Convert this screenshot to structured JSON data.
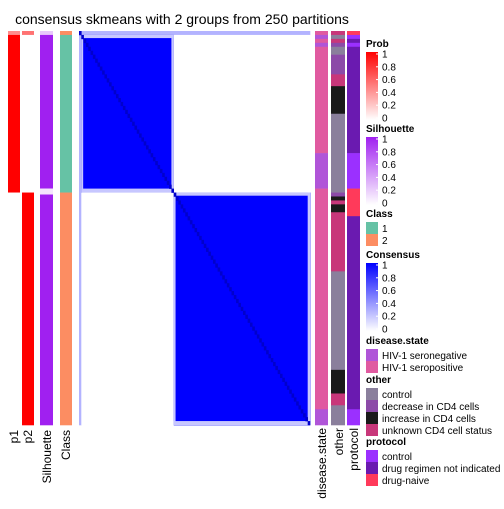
{
  "chart_data": {
    "type": "heatmap",
    "title": "consensus skmeans with 2 groups from 250 partitions",
    "n_samples": 100,
    "row_order_groups": [
      {
        "class": 2,
        "count": 1
      },
      {
        "class": 1,
        "count": 40
      },
      {
        "class": 2,
        "count": 59
      }
    ],
    "matrix_blocks": [
      {
        "rows": [
          0,
          0
        ],
        "cols": [
          0,
          0
        ],
        "value": 0.85
      },
      {
        "rows": [
          0,
          0
        ],
        "cols": [
          1,
          40
        ],
        "value": 0.3
      },
      {
        "rows": [
          0,
          0
        ],
        "cols": [
          41,
          99
        ],
        "value": 0.3
      },
      {
        "rows": [
          1,
          40
        ],
        "cols": [
          1,
          40
        ],
        "value": 1.0
      },
      {
        "rows": [
          1,
          40
        ],
        "cols": [
          41,
          99
        ],
        "value": 0.0
      },
      {
        "rows": [
          41,
          99
        ],
        "cols": [
          41,
          99
        ],
        "value": 1.0
      }
    ],
    "col_labels": [
      "p1",
      "p2",
      "Silhouette",
      "Class"
    ],
    "right_labels": [
      "disease.state",
      "other",
      "protocol"
    ],
    "legends": [
      {
        "title": "Prob",
        "type": "continuous",
        "ticks": [
          "1",
          "0.8",
          "0.6",
          "0.4",
          "0.2",
          "0"
        ],
        "colors": [
          "#ff0000",
          "#ffffff"
        ]
      },
      {
        "title": "Silhouette",
        "type": "continuous",
        "ticks": [
          "1",
          "0.8",
          "0.6",
          "0.4",
          "0.2",
          "0"
        ],
        "colors": [
          "#a020f0",
          "#ffffff"
        ]
      },
      {
        "title": "Class",
        "type": "discrete",
        "items": [
          {
            "label": "1",
            "color": "#66c2a5"
          },
          {
            "label": "2",
            "color": "#fc8d62"
          }
        ]
      },
      {
        "title": "Consensus",
        "type": "continuous",
        "ticks": [
          "1",
          "0.8",
          "0.6",
          "0.4",
          "0.2",
          "0"
        ],
        "colors": [
          "#0000ff",
          "#ffffff"
        ]
      },
      {
        "title": "disease.state",
        "type": "discrete",
        "items": [
          {
            "label": "HIV-1 seronegative",
            "color": "#b055d8"
          },
          {
            "label": "HIV-1 seropositive",
            "color": "#e05aa0"
          }
        ]
      },
      {
        "title": "other",
        "type": "discrete",
        "items": [
          {
            "label": "control",
            "color": "#8a7f9c"
          },
          {
            "label": "decrease in CD4 cells",
            "color": "#8c4aa8"
          },
          {
            "label": "increase in CD4 cells",
            "color": "#1a1a1a"
          },
          {
            "label": "unknown CD4 cell status",
            "color": "#c8377a"
          }
        ]
      },
      {
        "title": "protocol",
        "type": "discrete",
        "items": [
          {
            "label": "control",
            "color": "#9b30ff"
          },
          {
            "label": "drug regimen not indicated",
            "color": "#6a1ab0"
          },
          {
            "label": "drug-naive",
            "color": "#ff3a5a"
          }
        ]
      }
    ],
    "disease_state": [
      "HIV-1 seropositive",
      "HIV-1 seronegative",
      "HIV-1 seropositive",
      "HIV-1 seronegative",
      "HIV-1 seropositive",
      "HIV-1 seropositive",
      "HIV-1 seropositive",
      "HIV-1 seropositive",
      "HIV-1 seropositive",
      "HIV-1 seropositive",
      "HIV-1 seropositive",
      "HIV-1 seropositive",
      "HIV-1 seropositive",
      "HIV-1 seropositive",
      "HIV-1 seropositive",
      "HIV-1 seropositive",
      "HIV-1 seropositive",
      "HIV-1 seropositive",
      "HIV-1 seropositive",
      "HIV-1 seropositive",
      "HIV-1 seropositive",
      "HIV-1 seropositive",
      "HIV-1 seropositive",
      "HIV-1 seropositive",
      "HIV-1 seropositive",
      "HIV-1 seropositive",
      "HIV-1 seropositive",
      "HIV-1 seropositive",
      "HIV-1 seropositive",
      "HIV-1 seropositive",
      "HIV-1 seropositive",
      "HIV-1 seronegative",
      "HIV-1 seronegative",
      "HIV-1 seronegative",
      "HIV-1 seronegative",
      "HIV-1 seronegative",
      "HIV-1 seronegative",
      "HIV-1 seronegative",
      "HIV-1 seronegative",
      "HIV-1 seronegative",
      "HIV-1 seropositive",
      "HIV-1 seropositive",
      "HIV-1 seropositive",
      "HIV-1 seropositive",
      "HIV-1 seropositive",
      "HIV-1 seropositive",
      "HIV-1 seropositive",
      "HIV-1 seropositive",
      "HIV-1 seropositive",
      "HIV-1 seropositive",
      "HIV-1 seropositive",
      "HIV-1 seropositive",
      "HIV-1 seropositive",
      "HIV-1 seropositive",
      "HIV-1 seropositive",
      "HIV-1 seropositive",
      "HIV-1 seropositive",
      "HIV-1 seropositive",
      "HIV-1 seropositive",
      "HIV-1 seropositive",
      "HIV-1 seropositive",
      "HIV-1 seropositive",
      "HIV-1 seropositive",
      "HIV-1 seropositive",
      "HIV-1 seropositive",
      "HIV-1 seropositive",
      "HIV-1 seropositive",
      "HIV-1 seropositive",
      "HIV-1 seropositive",
      "HIV-1 seropositive",
      "HIV-1 seropositive",
      "HIV-1 seropositive",
      "HIV-1 seropositive",
      "HIV-1 seropositive",
      "HIV-1 seropositive",
      "HIV-1 seropositive",
      "HIV-1 seropositive",
      "HIV-1 seropositive",
      "HIV-1 seropositive",
      "HIV-1 seropositive",
      "HIV-1 seropositive",
      "HIV-1 seropositive",
      "HIV-1 seropositive",
      "HIV-1 seropositive",
      "HIV-1 seropositive",
      "HIV-1 seropositive",
      "HIV-1 seropositive",
      "HIV-1 seropositive",
      "HIV-1 seropositive",
      "HIV-1 seropositive",
      "HIV-1 seropositive",
      "HIV-1 seropositive",
      "HIV-1 seropositive",
      "HIV-1 seropositive",
      "HIV-1 seropositive",
      "HIV-1 seropositive",
      "HIV-1 seronegative",
      "HIV-1 seronegative",
      "HIV-1 seronegative",
      "HIV-1 seronegative"
    ],
    "other": [
      "unknown CD4 cell status",
      "control",
      "unknown CD4 cell status",
      "decrease in CD4 cells",
      "control",
      "control",
      "decrease in CD4 cells",
      "decrease in CD4 cells",
      "decrease in CD4 cells",
      "decrease in CD4 cells",
      "decrease in CD4 cells",
      "unknown CD4 cell status",
      "unknown CD4 cell status",
      "unknown CD4 cell status",
      "increase in CD4 cells",
      "increase in CD4 cells",
      "increase in CD4 cells",
      "increase in CD4 cells",
      "increase in CD4 cells",
      "increase in CD4 cells",
      "increase in CD4 cells",
      "control",
      "control",
      "control",
      "control",
      "control",
      "control",
      "control",
      "control",
      "control",
      "control",
      "control",
      "control",
      "control",
      "control",
      "control",
      "control",
      "control",
      "control",
      "control",
      "control",
      "decrease in CD4 cells",
      "increase in CD4 cells",
      "unknown CD4 cell status",
      "increase in CD4 cells",
      "increase in CD4 cells",
      "unknown CD4 cell status",
      "unknown CD4 cell status",
      "unknown CD4 cell status",
      "unknown CD4 cell status",
      "unknown CD4 cell status",
      "unknown CD4 cell status",
      "unknown CD4 cell status",
      "unknown CD4 cell status",
      "unknown CD4 cell status",
      "unknown CD4 cell status",
      "unknown CD4 cell status",
      "unknown CD4 cell status",
      "unknown CD4 cell status",
      "unknown CD4 cell status",
      "unknown CD4 cell status",
      "control",
      "control",
      "control",
      "control",
      "control",
      "control",
      "control",
      "control",
      "control",
      "control",
      "control",
      "control",
      "control",
      "control",
      "control",
      "control",
      "control",
      "control",
      "control",
      "control",
      "control",
      "control",
      "control",
      "control",
      "control",
      "increase in CD4 cells",
      "increase in CD4 cells",
      "increase in CD4 cells",
      "increase in CD4 cells",
      "increase in CD4 cells",
      "increase in CD4 cells",
      "unknown CD4 cell status",
      "unknown CD4 cell status",
      "unknown CD4 cell status",
      "control",
      "control",
      "control",
      "control",
      "control"
    ],
    "protocol": [
      "drug-naive",
      "control",
      "drug regimen not indicated",
      "control",
      "drug regimen not indicated",
      "drug regimen not indicated",
      "drug regimen not indicated",
      "drug regimen not indicated",
      "drug regimen not indicated",
      "drug regimen not indicated",
      "drug regimen not indicated",
      "drug regimen not indicated",
      "drug regimen not indicated",
      "drug regimen not indicated",
      "drug regimen not indicated",
      "drug regimen not indicated",
      "drug regimen not indicated",
      "drug regimen not indicated",
      "drug regimen not indicated",
      "drug regimen not indicated",
      "drug regimen not indicated",
      "drug regimen not indicated",
      "drug regimen not indicated",
      "drug regimen not indicated",
      "drug regimen not indicated",
      "drug regimen not indicated",
      "drug regimen not indicated",
      "drug regimen not indicated",
      "drug regimen not indicated",
      "drug regimen not indicated",
      "drug regimen not indicated",
      "control",
      "control",
      "control",
      "control",
      "control",
      "control",
      "control",
      "control",
      "control",
      "drug-naive",
      "drug-naive",
      "drug-naive",
      "drug-naive",
      "drug-naive",
      "drug-naive",
      "drug-naive",
      "drug regimen not indicated",
      "drug regimen not indicated",
      "drug regimen not indicated",
      "drug regimen not indicated",
      "drug regimen not indicated",
      "drug regimen not indicated",
      "drug regimen not indicated",
      "drug regimen not indicated",
      "drug regimen not indicated",
      "drug regimen not indicated",
      "drug regimen not indicated",
      "drug regimen not indicated",
      "drug regimen not indicated",
      "drug regimen not indicated",
      "drug regimen not indicated",
      "drug regimen not indicated",
      "drug regimen not indicated",
      "drug regimen not indicated",
      "drug regimen not indicated",
      "drug regimen not indicated",
      "drug regimen not indicated",
      "drug regimen not indicated",
      "drug regimen not indicated",
      "drug regimen not indicated",
      "drug regimen not indicated",
      "drug regimen not indicated",
      "drug regimen not indicated",
      "drug regimen not indicated",
      "drug regimen not indicated",
      "drug regimen not indicated",
      "drug regimen not indicated",
      "drug regimen not indicated",
      "drug regimen not indicated",
      "drug regimen not indicated",
      "drug regimen not indicated",
      "drug regimen not indicated",
      "drug regimen not indicated",
      "drug regimen not indicated",
      "drug regimen not indicated",
      "drug regimen not indicated",
      "drug regimen not indicated",
      "drug regimen not indicated",
      "drug regimen not indicated",
      "drug regimen not indicated",
      "drug regimen not indicated",
      "drug regimen not indicated",
      "drug regimen not indicated",
      "drug regimen not indicated",
      "drug regimen not indicated",
      "control",
      "control",
      "control",
      "control"
    ]
  }
}
